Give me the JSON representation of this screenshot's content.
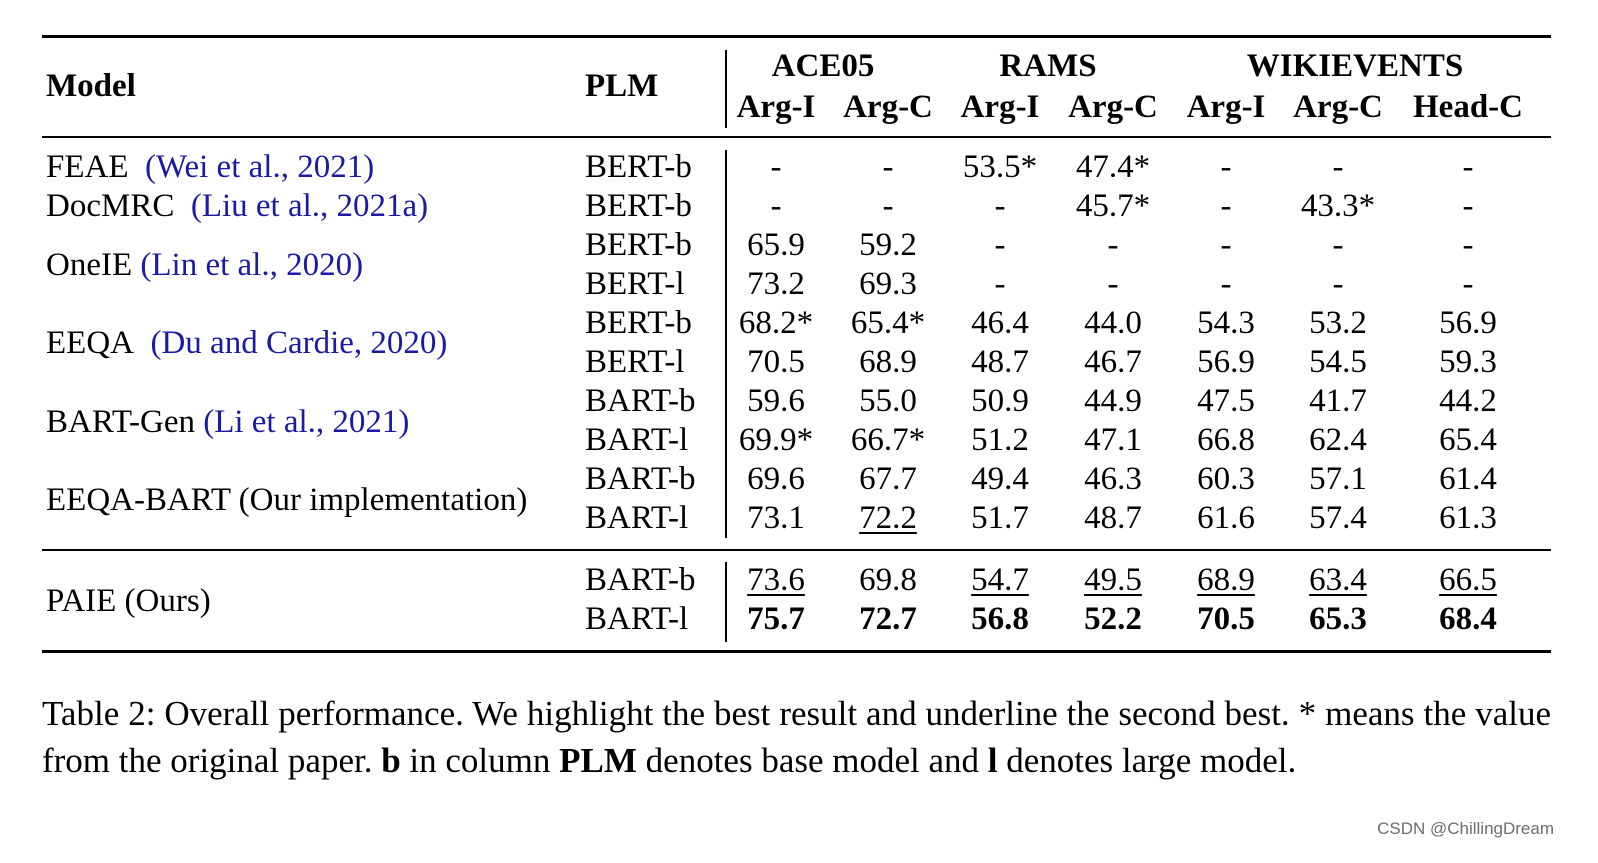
{
  "header": {
    "model": "Model",
    "plm": "PLM",
    "groups": [
      "ACE05",
      "RAMS",
      "WIKIEVENTS"
    ],
    "columns": [
      "Arg-I",
      "Arg-C",
      "Arg-I",
      "Arg-C",
      "Arg-I",
      "Arg-C",
      "Head-C"
    ]
  },
  "models": [
    {
      "name": "FEAE",
      "cite": "(Wei et al., 2021)"
    },
    {
      "name": "DocMRC",
      "cite": "(Liu et al., 2021a)"
    },
    {
      "name": "OneIE",
      "cite": "(Lin et al., 2020)"
    },
    {
      "name": "EEQA",
      "cite": "(Du and Cardie, 2020)"
    },
    {
      "name": "BART-Gen",
      "cite": "(Li et al., 2021)"
    },
    {
      "name": "EEQA-BART (Our implementation)",
      "cite": ""
    },
    {
      "name": "PAIE (Ours)",
      "cite": ""
    }
  ],
  "rows": [
    {
      "plm": "BERT-b",
      "values": [
        "-",
        "-",
        "53.5*",
        "47.4*",
        "-",
        "-",
        "-"
      ]
    },
    {
      "plm": "BERT-b",
      "values": [
        "-",
        "-",
        "-",
        "45.7*",
        "-",
        "43.3*",
        "-"
      ]
    },
    {
      "plm": "BERT-b",
      "values": [
        "65.9",
        "59.2",
        "-",
        "-",
        "-",
        "-",
        "-"
      ]
    },
    {
      "plm": "BERT-l",
      "values": [
        "73.2",
        "69.3",
        "-",
        "-",
        "-",
        "-",
        "-"
      ]
    },
    {
      "plm": "BERT-b",
      "values": [
        "68.2*",
        "65.4*",
        "46.4",
        "44.0",
        "54.3",
        "53.2",
        "56.9"
      ]
    },
    {
      "plm": "BERT-l",
      "values": [
        "70.5",
        "68.9",
        "48.7",
        "46.7",
        "56.9",
        "54.5",
        "59.3"
      ]
    },
    {
      "plm": "BART-b",
      "values": [
        "59.6",
        "55.0",
        "50.9",
        "44.9",
        "47.5",
        "41.7",
        "44.2"
      ]
    },
    {
      "plm": "BART-l",
      "values": [
        "69.9*",
        "66.7*",
        "51.2",
        "47.1",
        "66.8",
        "62.4",
        "65.4"
      ]
    },
    {
      "plm": "BART-b",
      "values": [
        "69.6",
        "67.7",
        "49.4",
        "46.3",
        "60.3",
        "57.1",
        "61.4"
      ]
    },
    {
      "plm": "BART-l",
      "values": [
        "73.1",
        "72.2",
        "51.7",
        "48.7",
        "61.6",
        "57.4",
        "61.3"
      ]
    },
    {
      "plm": "BART-b",
      "values": [
        "73.6",
        "69.8",
        "54.7",
        "49.5",
        "68.9",
        "63.4",
        "66.5"
      ]
    },
    {
      "plm": "BART-l",
      "values": [
        "75.7",
        "72.7",
        "56.8",
        "52.2",
        "70.5",
        "65.3",
        "68.4"
      ]
    }
  ],
  "caption": {
    "p1": "Table 2: Overall performance. We highlight the best result and underline the second best. * means the value from the original paper. ",
    "b1": "b",
    "p2": " in column ",
    "b2": "PLM",
    "p3": " denotes base model and ",
    "b3": "l",
    "p4": " denotes large model."
  },
  "watermark": "CSDN @ChillingDream"
}
